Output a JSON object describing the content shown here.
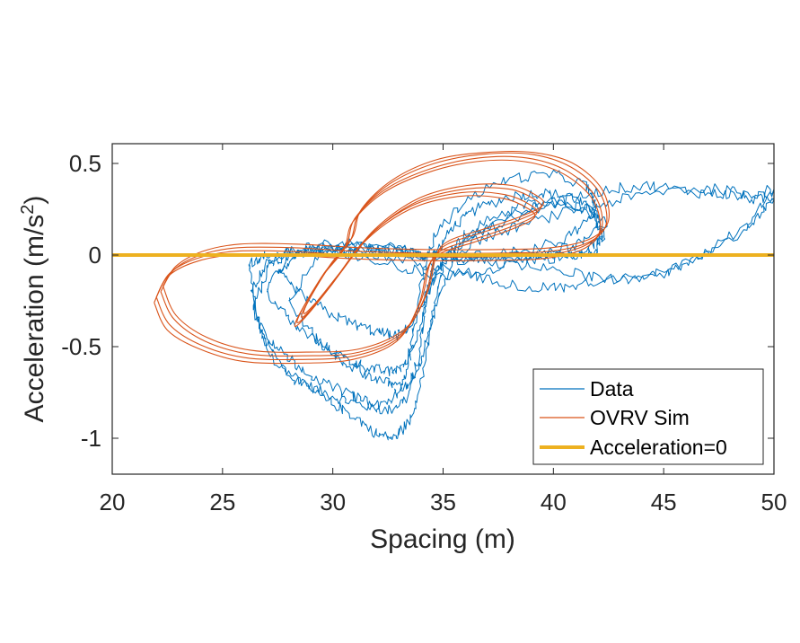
{
  "chart_data": {
    "type": "line",
    "xlabel": "Spacing (m)",
    "ylabel": "Acceleration (m/s",
    "ylabel_sup": "2",
    "ylabel_end": ")",
    "xlim": [
      20,
      50
    ],
    "ylim": [
      -1.2,
      0.6
    ],
    "xticks": [
      20,
      25,
      30,
      35,
      40,
      45,
      50
    ],
    "xtick_labels": [
      "20",
      "25",
      "30",
      "35",
      "40",
      "45",
      "50"
    ],
    "yticks": [
      0.5,
      0,
      -0.5,
      -1
    ],
    "ytick_labels": [
      "0.5",
      "0",
      "-0.5",
      "-1"
    ],
    "grid": false,
    "legend_position": "bottom-right",
    "colors": {
      "data": "#0072BD",
      "sim": "#D95319",
      "zero": "#EDB120",
      "axis": "#262626"
    },
    "series": [
      {
        "name": "Data",
        "color": "#0072BD",
        "x": [
          26.3,
          26.8,
          27.8,
          29.0,
          30.2,
          31.4,
          32.5,
          33.4,
          33.9,
          34.2,
          34.6,
          35.4,
          36.5,
          38.0,
          39.5,
          40.8,
          41.8,
          42.2,
          42.0,
          41.2,
          40.0,
          38.5,
          37.0,
          35.5,
          34.0,
          32.5,
          31.0,
          29.5,
          28.0,
          27.0,
          26.3
        ],
        "y": [
          -0.2,
          -0.45,
          -0.62,
          -0.72,
          -0.78,
          -0.82,
          -0.85,
          -0.78,
          -0.55,
          -0.25,
          0.0,
          0.15,
          0.25,
          0.32,
          0.34,
          0.32,
          0.24,
          0.12,
          0.03,
          0.0,
          0.0,
          -0.01,
          -0.02,
          -0.02,
          0.0,
          0.04,
          0.07,
          0.04,
          0.0,
          -0.05,
          -0.2
        ]
      },
      {
        "name": "Data",
        "color": "#0072BD",
        "x": [
          26.4,
          27.2,
          28.5,
          29.8,
          31.0,
          32.0,
          32.8,
          33.5,
          34.1,
          34.5,
          35.0,
          36.0,
          37.5,
          39.0,
          40.5,
          41.8,
          42.3,
          41.5,
          40.0,
          38.0,
          36.0,
          34.0,
          32.0,
          30.0,
          28.5,
          27.2,
          26.4
        ],
        "y": [
          -0.3,
          -0.55,
          -0.7,
          -0.8,
          -0.88,
          -0.98,
          -1.0,
          -0.9,
          -0.65,
          -0.35,
          -0.05,
          0.12,
          0.22,
          0.28,
          0.3,
          0.22,
          0.1,
          0.02,
          -0.02,
          -0.03,
          -0.02,
          0.01,
          0.05,
          0.06,
          0.03,
          -0.02,
          -0.3
        ]
      },
      {
        "name": "Data",
        "color": "#0072BD",
        "x": [
          27.0,
          28.2,
          29.6,
          30.8,
          31.8,
          32.6,
          33.3,
          33.8,
          34.3,
          35.0,
          36.5,
          38.5,
          40.5,
          42.5,
          44.5,
          46.5,
          48.0,
          49.2,
          50.0,
          49.0,
          47.0,
          45.0,
          43.0,
          41.0,
          39.0,
          37.0,
          35.0,
          33.0,
          31.0,
          29.5,
          28.0,
          27.0
        ],
        "y": [
          -0.2,
          -0.38,
          -0.5,
          -0.58,
          -0.62,
          -0.64,
          -0.6,
          -0.45,
          -0.22,
          -0.02,
          0.12,
          0.22,
          0.3,
          0.36,
          0.38,
          0.34,
          0.33,
          0.3,
          0.32,
          0.18,
          0.02,
          -0.1,
          -0.14,
          -0.1,
          -0.06,
          -0.04,
          -0.02,
          0.01,
          0.04,
          0.03,
          0.0,
          -0.2
        ]
      },
      {
        "name": "Data",
        "color": "#0072BD",
        "x": [
          27.5,
          28.6,
          29.9,
          31.0,
          32.0,
          32.9,
          33.6,
          34.2,
          35.0,
          36.5,
          38.5,
          40.8,
          43.0,
          45.5,
          47.5,
          49.0,
          50.0,
          48.5,
          46.0,
          44.0,
          42.0,
          40.0,
          38.0,
          36.0,
          34.0,
          32.0,
          30.0,
          28.5,
          27.5
        ],
        "y": [
          -0.1,
          -0.22,
          -0.32,
          -0.38,
          -0.42,
          -0.44,
          -0.38,
          -0.22,
          -0.05,
          0.08,
          0.16,
          0.24,
          0.3,
          0.36,
          0.36,
          0.33,
          0.36,
          0.12,
          -0.05,
          -0.12,
          -0.15,
          -0.18,
          -0.16,
          -0.1,
          -0.05,
          0.0,
          0.04,
          0.02,
          -0.1
        ]
      },
      {
        "name": "Data",
        "color": "#0072BD",
        "x": [
          28.0,
          29.2,
          30.4,
          31.5,
          32.5,
          33.3,
          34.0,
          34.6,
          35.5,
          37.5,
          39.5,
          41.5,
          42.4,
          41.0,
          39.0,
          37.0,
          35.0,
          33.0,
          31.0,
          29.5,
          28.0
        ],
        "y": [
          -0.25,
          -0.45,
          -0.58,
          -0.65,
          -0.7,
          -0.72,
          -0.6,
          -0.3,
          0.0,
          0.2,
          0.28,
          0.26,
          0.18,
          0.05,
          -0.02,
          -0.08,
          -0.12,
          -0.06,
          0.0,
          0.02,
          -0.25
        ]
      },
      {
        "name": "Data",
        "color": "#0072BD",
        "x": [
          26.2,
          26.6,
          27.4,
          28.4,
          29.6,
          30.8,
          31.8,
          32.6,
          33.2,
          33.6,
          34.0,
          34.6,
          36.0,
          38.0,
          40.0,
          41.5,
          42.0,
          40.5,
          38.5,
          36.5,
          34.5,
          32.5,
          30.5,
          28.5,
          27.0,
          26.2
        ],
        "y": [
          -0.05,
          -0.35,
          -0.5,
          -0.6,
          -0.7,
          -0.76,
          -0.82,
          -0.8,
          -0.7,
          -0.45,
          -0.15,
          0.1,
          0.3,
          0.42,
          0.44,
          0.38,
          0.25,
          0.08,
          0.02,
          0.0,
          -0.01,
          0.02,
          0.05,
          0.03,
          0.0,
          -0.05
        ]
      }
    ],
    "sim_series": [
      {
        "name": "OVRV Sim",
        "color": "#D95319",
        "x": [
          22.0,
          22.6,
          24.0,
          26.0,
          28.5,
          31.0,
          33.0,
          34.0,
          34.4,
          35.0,
          36.5,
          38.2,
          39.2,
          39.0,
          37.8,
          35.8,
          33.6,
          31.6,
          30.0,
          29.0,
          28.4,
          28.6,
          29.6,
          30.6,
          31.0,
          32.4,
          34.4,
          36.6,
          38.8,
          40.6,
          41.9,
          42.2,
          41.4,
          39.6,
          37.0,
          34.0,
          31.0,
          28.0,
          25.5,
          23.8,
          22.6,
          22.0
        ],
        "y": [
          -0.23,
          -0.38,
          -0.49,
          -0.56,
          -0.57,
          -0.55,
          -0.45,
          -0.25,
          -0.05,
          0.03,
          0.09,
          0.16,
          0.22,
          0.27,
          0.33,
          0.34,
          0.27,
          0.1,
          -0.15,
          -0.3,
          -0.37,
          -0.3,
          -0.1,
          0.05,
          0.2,
          0.36,
          0.47,
          0.53,
          0.53,
          0.46,
          0.32,
          0.15,
          0.05,
          0.0,
          -0.01,
          -0.01,
          0.0,
          0.02,
          0.02,
          -0.02,
          -0.1,
          -0.23
        ]
      },
      {
        "name": "OVRV Sim",
        "color": "#D95319",
        "x": [
          22.2,
          22.8,
          24.2,
          26.2,
          28.7,
          31.2,
          33.2,
          34.2,
          34.6,
          35.2,
          36.7,
          38.4,
          39.4,
          39.2,
          38.0,
          36.0,
          33.8,
          31.8,
          30.2,
          29.2,
          28.6,
          28.8,
          29.8,
          30.8,
          31.2,
          32.6,
          34.6,
          36.8,
          39.0,
          40.8,
          42.1,
          42.4,
          41.6,
          39.8,
          37.2,
          34.2,
          31.2,
          28.2,
          25.7,
          24.0,
          22.8,
          22.2
        ],
        "y": [
          -0.2,
          -0.35,
          -0.47,
          -0.54,
          -0.55,
          -0.53,
          -0.42,
          -0.22,
          -0.02,
          0.06,
          0.12,
          0.19,
          0.25,
          0.3,
          0.36,
          0.36,
          0.29,
          0.12,
          -0.12,
          -0.27,
          -0.34,
          -0.27,
          -0.07,
          0.08,
          0.23,
          0.39,
          0.5,
          0.55,
          0.55,
          0.48,
          0.34,
          0.17,
          0.07,
          0.02,
          0.01,
          0.01,
          0.02,
          0.04,
          0.04,
          0.0,
          -0.08,
          -0.2
        ]
      },
      {
        "name": "OVRV Sim",
        "color": "#D95319",
        "x": [
          21.9,
          22.5,
          23.9,
          25.9,
          28.4,
          30.9,
          32.9,
          33.9,
          34.3,
          34.9,
          36.4,
          38.1,
          39.1,
          38.9,
          37.7,
          35.7,
          33.5,
          31.5,
          29.9,
          28.9,
          28.3,
          28.5,
          29.5,
          30.5,
          30.9,
          32.3,
          34.3,
          36.5,
          38.7,
          40.5,
          41.8,
          42.1,
          41.3,
          39.5,
          36.9,
          33.9,
          30.9,
          27.9,
          25.4,
          23.7,
          22.5,
          21.9
        ],
        "y": [
          -0.26,
          -0.41,
          -0.51,
          -0.58,
          -0.59,
          -0.57,
          -0.47,
          -0.27,
          -0.07,
          0.01,
          0.07,
          0.14,
          0.2,
          0.25,
          0.31,
          0.32,
          0.25,
          0.08,
          -0.17,
          -0.32,
          -0.39,
          -0.32,
          -0.12,
          0.03,
          0.18,
          0.34,
          0.45,
          0.51,
          0.51,
          0.44,
          0.3,
          0.13,
          0.03,
          -0.02,
          -0.03,
          -0.03,
          -0.02,
          0.0,
          0.0,
          -0.04,
          -0.12,
          -0.26
        ]
      },
      {
        "name": "OVRV Sim",
        "color": "#D95319",
        "x": [
          22.3,
          22.9,
          24.3,
          26.3,
          28.8,
          31.3,
          33.3,
          34.3,
          34.7,
          35.3,
          36.8,
          38.5,
          39.5,
          39.3,
          38.1,
          36.1,
          33.9,
          31.9,
          30.3,
          29.3,
          28.7,
          28.9,
          29.9,
          30.9,
          31.3,
          32.7,
          34.7,
          36.9,
          39.1,
          40.9,
          42.2,
          42.5,
          41.7,
          39.9,
          37.3,
          34.3,
          31.3,
          28.3,
          25.8,
          24.1,
          22.9,
          22.3
        ],
        "y": [
          -0.17,
          -0.33,
          -0.45,
          -0.52,
          -0.53,
          -0.51,
          -0.4,
          -0.2,
          0.0,
          0.08,
          0.14,
          0.21,
          0.27,
          0.32,
          0.38,
          0.38,
          0.31,
          0.14,
          -0.1,
          -0.25,
          -0.32,
          -0.25,
          -0.05,
          0.1,
          0.25,
          0.41,
          0.52,
          0.56,
          0.56,
          0.5,
          0.36,
          0.19,
          0.09,
          0.04,
          0.03,
          0.03,
          0.04,
          0.06,
          0.06,
          0.02,
          -0.06,
          -0.17
        ]
      }
    ],
    "zero_line": {
      "name": "Acceleration=0",
      "y": 0,
      "color": "#EDB120"
    },
    "legend": [
      {
        "label": "Data",
        "color": "#0072BD",
        "width": "thin"
      },
      {
        "label": "OVRV Sim",
        "color": "#D95319",
        "width": "thin"
      },
      {
        "label": "Acceleration=0",
        "color": "#EDB120",
        "width": "thick"
      }
    ]
  }
}
